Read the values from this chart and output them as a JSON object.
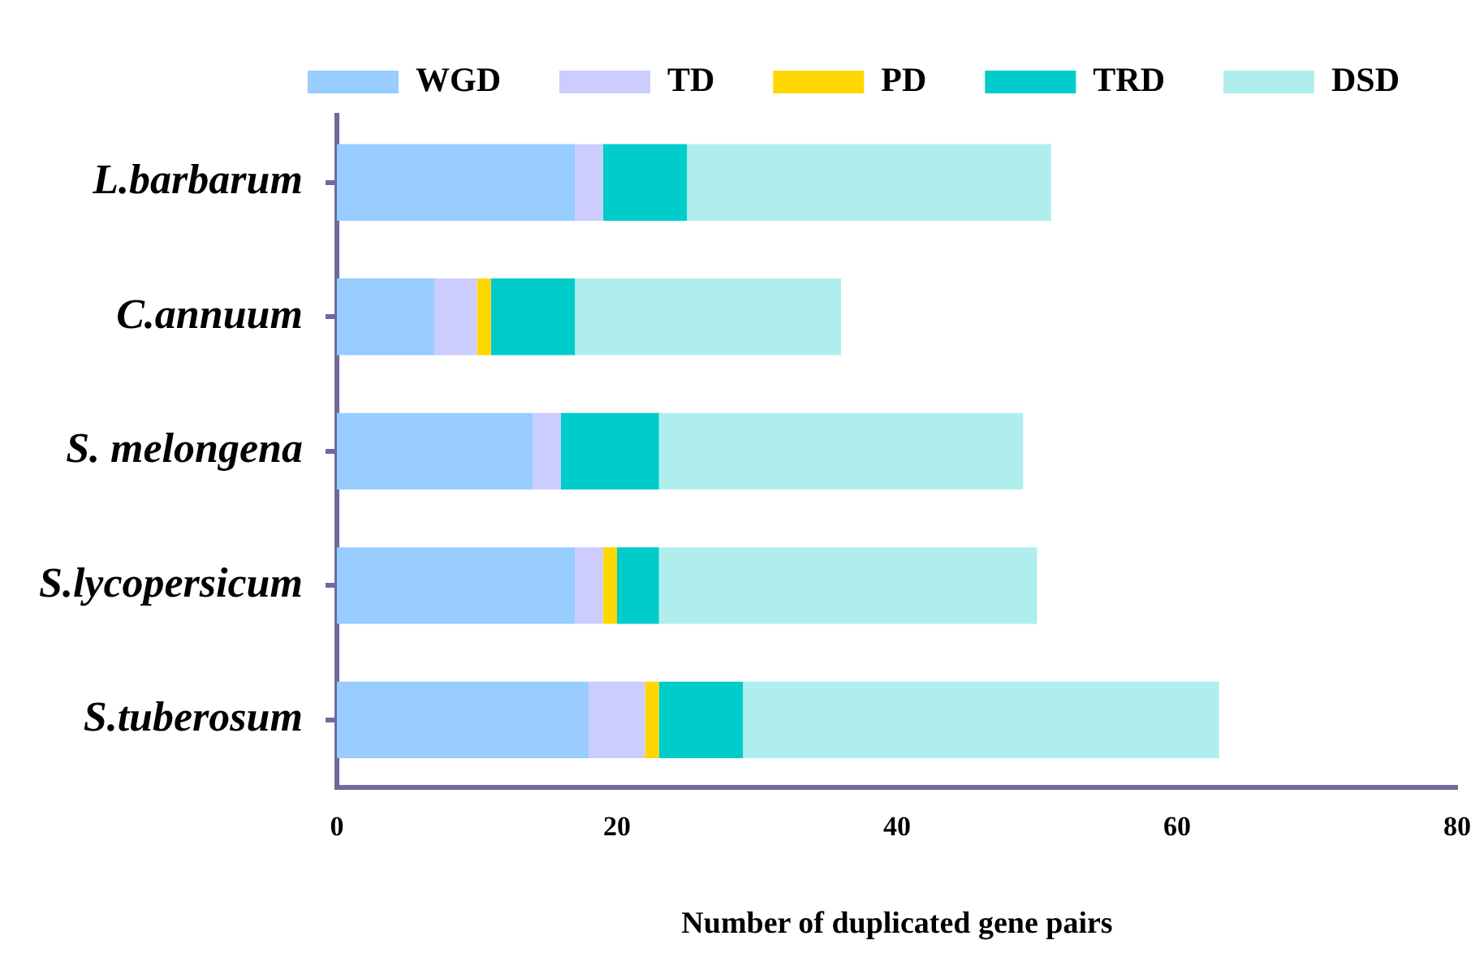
{
  "chart_data": {
    "type": "bar",
    "orientation": "horizontal",
    "stacked": true,
    "xlabel": "Number of duplicated gene pairs",
    "categories": [
      "L.barbarum",
      "C.annuum",
      "S. melongena",
      "S.lycopersicum",
      "S.tuberosum"
    ],
    "series": [
      {
        "name": "WGD",
        "color": "#99ccff",
        "values": [
          17,
          7,
          14,
          17,
          18
        ]
      },
      {
        "name": "TD",
        "color": "#ccccff",
        "values": [
          2,
          3,
          2,
          2,
          4
        ]
      },
      {
        "name": "PD",
        "color": "#ffd700",
        "values": [
          0,
          1,
          0,
          1,
          1
        ]
      },
      {
        "name": "TRD",
        "color": "#00cccc",
        "values": [
          6,
          6,
          7,
          3,
          6
        ]
      },
      {
        "name": "DSD",
        "color": "#b0eeee",
        "values": [
          26,
          19,
          26,
          27,
          34
        ]
      }
    ],
    "xlim": [
      0,
      80
    ],
    "xticks": [
      0,
      20,
      40,
      60,
      80
    ],
    "grid": false,
    "legend": "top"
  }
}
